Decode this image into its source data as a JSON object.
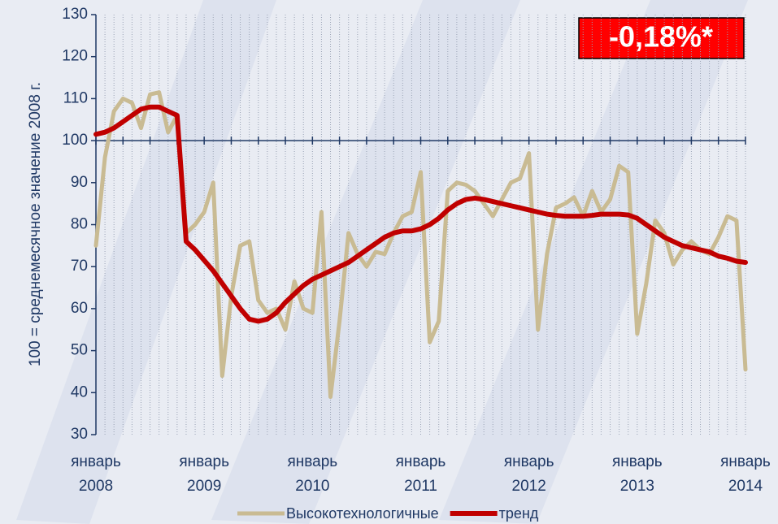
{
  "chart_data": {
    "type": "line",
    "y_label": "100 = среднемесячное значение 2008 г.",
    "annotation": "-0,18%*",
    "categories": [
      "январь 2008",
      null,
      null,
      null,
      null,
      null,
      null,
      null,
      null,
      null,
      null,
      null,
      "январь 2009",
      null,
      null,
      null,
      null,
      null,
      null,
      null,
      null,
      null,
      null,
      null,
      "январь 2010",
      null,
      null,
      null,
      null,
      null,
      null,
      null,
      null,
      null,
      null,
      null,
      "январь 2011",
      null,
      null,
      null,
      null,
      null,
      null,
      null,
      null,
      null,
      null,
      null,
      "январь 2012",
      null,
      null,
      null,
      null,
      null,
      null,
      null,
      null,
      null,
      null,
      null,
      "январь 2013",
      null,
      null,
      null,
      null,
      null,
      null,
      null,
      null,
      null,
      null,
      null,
      "январь 2014"
    ],
    "series": [
      {
        "name": "Высокотехнологичные",
        "color": "#c9bb93",
        "values": [
          75,
          96,
          107,
          110,
          109,
          103,
          111,
          111.5,
          102,
          106,
          78,
          80,
          83,
          90,
          44,
          63,
          75,
          76,
          62,
          59,
          60,
          55,
          66.5,
          60,
          59,
          83,
          39,
          57,
          78,
          73,
          70,
          73.5,
          73,
          78,
          82,
          83,
          92.5,
          52,
          57,
          88,
          90,
          89.5,
          88,
          85,
          82,
          86,
          90,
          91,
          97,
          55,
          73,
          84,
          85,
          86.5,
          82,
          88,
          83,
          86,
          94,
          92.5,
          54,
          66,
          81,
          78,
          70.5,
          74,
          76,
          74,
          73,
          77,
          82,
          81,
          45.5
        ]
      },
      {
        "name": "тренд",
        "color": "#c00000",
        "values": [
          101.5,
          102,
          103,
          104.5,
          106,
          107.5,
          108,
          108,
          107,
          106,
          76,
          74,
          71.5,
          69,
          66,
          63,
          60,
          57.5,
          57,
          57.5,
          59,
          61.5,
          63.5,
          65.5,
          67,
          68,
          69,
          70,
          71,
          72.5,
          74,
          75.5,
          77,
          78,
          78.5,
          78.5,
          79,
          80,
          81.5,
          83.5,
          85,
          86,
          86.3,
          86,
          85.5,
          85,
          84.5,
          84,
          83.5,
          83,
          82.5,
          82.2,
          82,
          82,
          82,
          82.2,
          82.5,
          82.5,
          82.5,
          82.3,
          81.5,
          80,
          78.5,
          77,
          76,
          75,
          74.5,
          74,
          73.5,
          72.5,
          72,
          71.3,
          71
        ]
      }
    ],
    "ylim": [
      30,
      130
    ],
    "yticks": [
      30,
      40,
      50,
      60,
      70,
      80,
      90,
      100,
      110,
      120,
      130
    ],
    "x_axis_crosses": 100,
    "grid": true,
    "legend": "bottom"
  }
}
